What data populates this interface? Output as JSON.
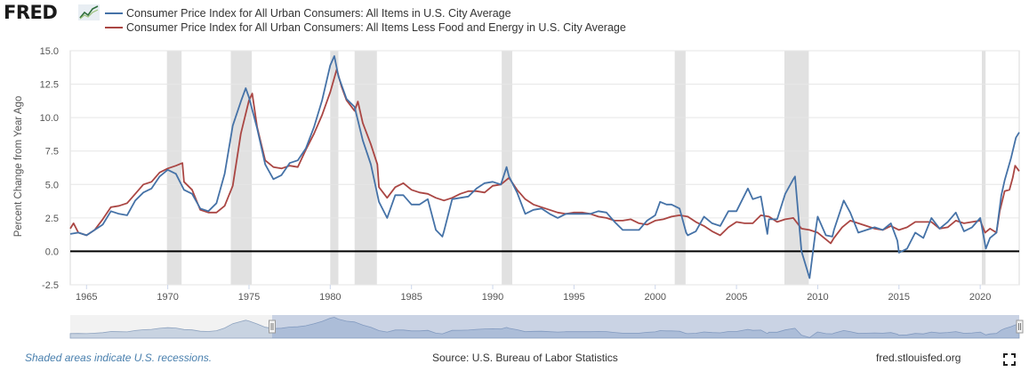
{
  "brand": {
    "logo_text": "FRED"
  },
  "colors": {
    "cpi_all": "#4572A7",
    "cpi_core": "#AA4643",
    "recession": "#e1e1e1",
    "note": "#4A80AE"
  },
  "footer": {
    "recession_note": "Shaded areas indicate U.S. recessions.",
    "source": "Source: U.S. Bureau of Labor Statistics",
    "url": "fred.stlouisfed.org"
  },
  "icons": {
    "fullscreen": "fullscreen-icon",
    "logo_mark": "fred-chart-mark-icon"
  },
  "chart_data": {
    "type": "line",
    "ylabel": "Percent Change from Year Ago",
    "ylim": [
      -2.5,
      15.0
    ],
    "y_ticks": [
      "-2.5",
      "0.0",
      "2.5",
      "5.0",
      "7.5",
      "10.0",
      "12.5",
      "15.0"
    ],
    "x_ticks": [
      "1965",
      "1970",
      "1975",
      "1980",
      "1985",
      "1990",
      "1995",
      "2000",
      "2005",
      "2010",
      "2015",
      "2020"
    ],
    "xlim": [
      1964.0,
      2022.4
    ],
    "grid": true,
    "legend_position": "top",
    "recessions": [
      [
        1969.95,
        1970.85
      ],
      [
        1973.88,
        1975.17
      ],
      [
        1980.0,
        1980.5
      ],
      [
        1981.5,
        1982.87
      ],
      [
        1990.55,
        1991.2
      ],
      [
        2001.2,
        2001.87
      ],
      [
        2007.95,
        2009.45
      ],
      [
        2020.1,
        2020.33
      ]
    ],
    "series": [
      {
        "name": "Consumer Price Index for All Urban Consumers: All Items in U.S. City Average",
        "points": [
          [
            1964.0,
            1.3
          ],
          [
            1964.5,
            1.4
          ],
          [
            1965.0,
            1.2
          ],
          [
            1965.5,
            1.6
          ],
          [
            1966.0,
            2.0
          ],
          [
            1966.5,
            3.0
          ],
          [
            1967.0,
            2.8
          ],
          [
            1967.5,
            2.7
          ],
          [
            1968.0,
            3.8
          ],
          [
            1968.5,
            4.4
          ],
          [
            1969.0,
            4.7
          ],
          [
            1969.5,
            5.6
          ],
          [
            1970.0,
            6.1
          ],
          [
            1970.5,
            5.8
          ],
          [
            1971.0,
            4.6
          ],
          [
            1971.5,
            4.3
          ],
          [
            1972.0,
            3.2
          ],
          [
            1972.5,
            3.0
          ],
          [
            1973.0,
            3.6
          ],
          [
            1973.5,
            5.8
          ],
          [
            1974.0,
            9.4
          ],
          [
            1974.5,
            11.2
          ],
          [
            1974.8,
            12.2
          ],
          [
            1975.0,
            11.5
          ],
          [
            1975.5,
            9.2
          ],
          [
            1976.0,
            6.5
          ],
          [
            1976.5,
            5.4
          ],
          [
            1977.0,
            5.7
          ],
          [
            1977.5,
            6.6
          ],
          [
            1978.0,
            6.8
          ],
          [
            1978.5,
            7.7
          ],
          [
            1979.0,
            9.3
          ],
          [
            1979.5,
            11.3
          ],
          [
            1980.0,
            13.9
          ],
          [
            1980.25,
            14.6
          ],
          [
            1980.5,
            13.1
          ],
          [
            1981.0,
            11.4
          ],
          [
            1981.5,
            10.8
          ],
          [
            1982.0,
            8.3
          ],
          [
            1982.5,
            6.5
          ],
          [
            1983.0,
            3.7
          ],
          [
            1983.5,
            2.5
          ],
          [
            1984.0,
            4.2
          ],
          [
            1984.5,
            4.2
          ],
          [
            1985.0,
            3.5
          ],
          [
            1985.5,
            3.5
          ],
          [
            1986.0,
            3.9
          ],
          [
            1986.5,
            1.6
          ],
          [
            1986.9,
            1.1
          ],
          [
            1987.0,
            1.5
          ],
          [
            1987.5,
            3.9
          ],
          [
            1988.0,
            4.0
          ],
          [
            1988.5,
            4.1
          ],
          [
            1989.0,
            4.7
          ],
          [
            1989.5,
            5.1
          ],
          [
            1990.0,
            5.2
          ],
          [
            1990.5,
            5.0
          ],
          [
            1990.85,
            6.3
          ],
          [
            1991.0,
            5.6
          ],
          [
            1991.5,
            4.4
          ],
          [
            1992.0,
            2.8
          ],
          [
            1992.5,
            3.1
          ],
          [
            1993.0,
            3.2
          ],
          [
            1993.5,
            2.8
          ],
          [
            1994.0,
            2.5
          ],
          [
            1994.5,
            2.8
          ],
          [
            1995.0,
            2.8
          ],
          [
            1995.5,
            2.8
          ],
          [
            1996.0,
            2.8
          ],
          [
            1996.5,
            3.0
          ],
          [
            1997.0,
            2.9
          ],
          [
            1997.5,
            2.2
          ],
          [
            1998.0,
            1.6
          ],
          [
            1998.5,
            1.6
          ],
          [
            1999.0,
            1.6
          ],
          [
            1999.5,
            2.3
          ],
          [
            2000.0,
            2.7
          ],
          [
            2000.3,
            3.7
          ],
          [
            2000.7,
            3.5
          ],
          [
            2001.0,
            3.5
          ],
          [
            2001.5,
            3.2
          ],
          [
            2001.9,
            1.4
          ],
          [
            2002.0,
            1.2
          ],
          [
            2002.5,
            1.5
          ],
          [
            2003.0,
            2.6
          ],
          [
            2003.5,
            2.1
          ],
          [
            2004.0,
            1.9
          ],
          [
            2004.5,
            3.0
          ],
          [
            2005.0,
            3.0
          ],
          [
            2005.7,
            4.7
          ],
          [
            2006.0,
            3.9
          ],
          [
            2006.5,
            4.1
          ],
          [
            2006.9,
            1.3
          ],
          [
            2007.0,
            2.4
          ],
          [
            2007.5,
            2.4
          ],
          [
            2008.0,
            4.3
          ],
          [
            2008.5,
            5.4
          ],
          [
            2008.6,
            5.6
          ],
          [
            2009.0,
            0.0
          ],
          [
            2009.5,
            -2.0
          ],
          [
            2009.9,
            1.8
          ],
          [
            2010.0,
            2.6
          ],
          [
            2010.5,
            1.2
          ],
          [
            2010.9,
            1.1
          ],
          [
            2011.0,
            1.6
          ],
          [
            2011.6,
            3.8
          ],
          [
            2012.0,
            2.9
          ],
          [
            2012.5,
            1.4
          ],
          [
            2013.0,
            1.6
          ],
          [
            2013.5,
            1.8
          ],
          [
            2014.0,
            1.6
          ],
          [
            2014.5,
            2.1
          ],
          [
            2014.9,
            0.8
          ],
          [
            2015.0,
            -0.1
          ],
          [
            2015.5,
            0.2
          ],
          [
            2016.0,
            1.4
          ],
          [
            2016.5,
            1.0
          ],
          [
            2017.0,
            2.5
          ],
          [
            2017.5,
            1.7
          ],
          [
            2018.0,
            2.2
          ],
          [
            2018.5,
            2.9
          ],
          [
            2019.0,
            1.5
          ],
          [
            2019.5,
            1.8
          ],
          [
            2020.0,
            2.5
          ],
          [
            2020.35,
            0.2
          ],
          [
            2020.6,
            1.0
          ],
          [
            2021.0,
            1.4
          ],
          [
            2021.3,
            4.2
          ],
          [
            2021.5,
            5.3
          ],
          [
            2021.9,
            7.0
          ],
          [
            2022.2,
            8.5
          ],
          [
            2022.4,
            8.9
          ]
        ]
      },
      {
        "name": "Consumer Price Index for All Urban Consumers: All Items Less Food and Energy in U.S. City Average",
        "points": [
          [
            1964.0,
            1.7
          ],
          [
            1964.2,
            2.1
          ],
          [
            1964.5,
            1.4
          ],
          [
            1965.0,
            1.2
          ],
          [
            1965.5,
            1.6
          ],
          [
            1966.0,
            2.4
          ],
          [
            1966.5,
            3.3
          ],
          [
            1967.0,
            3.4
          ],
          [
            1967.5,
            3.6
          ],
          [
            1968.0,
            4.3
          ],
          [
            1968.5,
            5.0
          ],
          [
            1969.0,
            5.2
          ],
          [
            1969.5,
            5.9
          ],
          [
            1970.0,
            6.2
          ],
          [
            1970.5,
            6.4
          ],
          [
            1970.9,
            6.6
          ],
          [
            1971.0,
            5.2
          ],
          [
            1971.5,
            4.6
          ],
          [
            1972.0,
            3.1
          ],
          [
            1972.5,
            2.9
          ],
          [
            1973.0,
            2.9
          ],
          [
            1973.5,
            3.4
          ],
          [
            1974.0,
            4.9
          ],
          [
            1974.5,
            8.8
          ],
          [
            1975.0,
            11.3
          ],
          [
            1975.2,
            11.8
          ],
          [
            1975.5,
            9.3
          ],
          [
            1976.0,
            6.8
          ],
          [
            1976.5,
            6.3
          ],
          [
            1977.0,
            6.2
          ],
          [
            1977.5,
            6.4
          ],
          [
            1978.0,
            6.3
          ],
          [
            1978.5,
            7.6
          ],
          [
            1979.0,
            8.8
          ],
          [
            1979.5,
            10.2
          ],
          [
            1980.0,
            11.9
          ],
          [
            1980.4,
            13.6
          ],
          [
            1980.7,
            12.3
          ],
          [
            1981.0,
            11.3
          ],
          [
            1981.5,
            10.5
          ],
          [
            1981.7,
            11.2
          ],
          [
            1982.0,
            9.6
          ],
          [
            1982.5,
            8.0
          ],
          [
            1982.9,
            6.5
          ],
          [
            1983.0,
            4.8
          ],
          [
            1983.5,
            4.0
          ],
          [
            1984.0,
            4.8
          ],
          [
            1984.5,
            5.1
          ],
          [
            1985.0,
            4.6
          ],
          [
            1985.5,
            4.4
          ],
          [
            1986.0,
            4.3
          ],
          [
            1986.5,
            4.0
          ],
          [
            1987.0,
            3.8
          ],
          [
            1987.5,
            4.0
          ],
          [
            1988.0,
            4.3
          ],
          [
            1988.5,
            4.5
          ],
          [
            1989.0,
            4.5
          ],
          [
            1989.5,
            4.4
          ],
          [
            1990.0,
            4.9
          ],
          [
            1990.5,
            5.0
          ],
          [
            1991.0,
            5.5
          ],
          [
            1991.5,
            4.6
          ],
          [
            1992.0,
            3.9
          ],
          [
            1992.5,
            3.5
          ],
          [
            1993.0,
            3.3
          ],
          [
            1993.5,
            3.1
          ],
          [
            1994.0,
            2.9
          ],
          [
            1994.5,
            2.8
          ],
          [
            1995.0,
            2.9
          ],
          [
            1995.5,
            2.9
          ],
          [
            1996.0,
            2.8
          ],
          [
            1996.5,
            2.6
          ],
          [
            1997.0,
            2.5
          ],
          [
            1997.5,
            2.3
          ],
          [
            1998.0,
            2.3
          ],
          [
            1998.5,
            2.4
          ],
          [
            1999.0,
            2.1
          ],
          [
            1999.5,
            2.0
          ],
          [
            2000.0,
            2.3
          ],
          [
            2000.5,
            2.4
          ],
          [
            2001.0,
            2.6
          ],
          [
            2001.5,
            2.7
          ],
          [
            2002.0,
            2.6
          ],
          [
            2002.5,
            2.2
          ],
          [
            2003.0,
            1.9
          ],
          [
            2003.5,
            1.5
          ],
          [
            2004.0,
            1.2
          ],
          [
            2004.5,
            1.8
          ],
          [
            2005.0,
            2.2
          ],
          [
            2005.5,
            2.1
          ],
          [
            2006.0,
            2.1
          ],
          [
            2006.5,
            2.7
          ],
          [
            2007.0,
            2.6
          ],
          [
            2007.5,
            2.2
          ],
          [
            2008.0,
            2.4
          ],
          [
            2008.5,
            2.5
          ],
          [
            2009.0,
            1.7
          ],
          [
            2009.5,
            1.6
          ],
          [
            2010.0,
            1.4
          ],
          [
            2010.5,
            0.9
          ],
          [
            2010.8,
            0.6
          ],
          [
            2011.0,
            1.0
          ],
          [
            2011.5,
            1.8
          ],
          [
            2012.0,
            2.3
          ],
          [
            2012.5,
            2.1
          ],
          [
            2013.0,
            1.9
          ],
          [
            2013.5,
            1.7
          ],
          [
            2014.0,
            1.6
          ],
          [
            2014.5,
            1.9
          ],
          [
            2015.0,
            1.6
          ],
          [
            2015.5,
            1.8
          ],
          [
            2016.0,
            2.2
          ],
          [
            2016.5,
            2.2
          ],
          [
            2017.0,
            2.2
          ],
          [
            2017.5,
            1.7
          ],
          [
            2018.0,
            1.8
          ],
          [
            2018.5,
            2.3
          ],
          [
            2019.0,
            2.1
          ],
          [
            2019.5,
            2.2
          ],
          [
            2020.0,
            2.3
          ],
          [
            2020.3,
            1.4
          ],
          [
            2020.6,
            1.7
          ],
          [
            2021.0,
            1.4
          ],
          [
            2021.2,
            3.0
          ],
          [
            2021.5,
            4.5
          ],
          [
            2021.8,
            4.6
          ],
          [
            2022.0,
            5.5
          ],
          [
            2022.15,
            6.4
          ],
          [
            2022.4,
            6.0
          ]
        ]
      }
    ]
  }
}
